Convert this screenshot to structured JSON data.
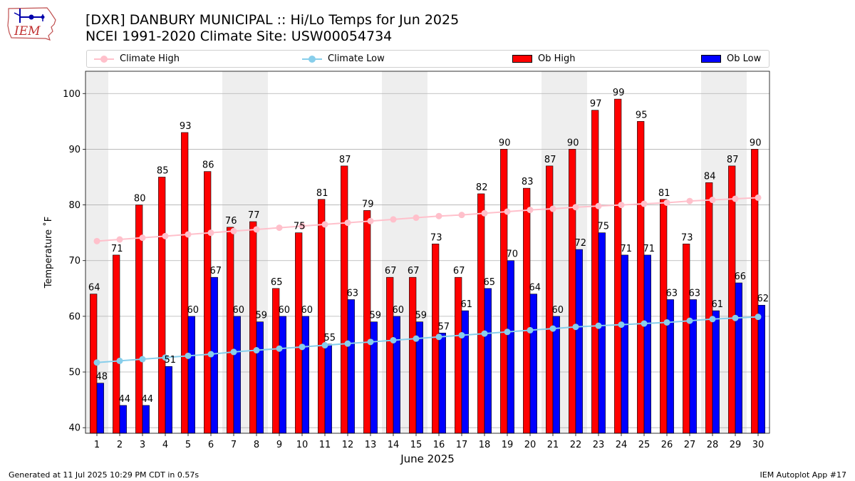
{
  "header": {
    "title_line1": "[DXR] DANBURY MUNICIPAL :: Hi/Lo Temps for Jun 2025",
    "title_line2": "NCEI 1991-2020 Climate Site: USW00054734",
    "logo_text": "IEM",
    "logo_icon": "iowa-map-weather-station-icon"
  },
  "legend": {
    "climate_high": "Climate High",
    "climate_low": "Climate Low",
    "ob_high": "Ob High",
    "ob_low": "Ob Low"
  },
  "footer": {
    "generated": "Generated at 11 Jul 2025 10:29 PM CDT in 0.57s",
    "app": "IEM Autoplot App #17"
  },
  "colors": {
    "ob_high": "#ff0000",
    "ob_low": "#0000ff",
    "climate_high": "#ffc0cb",
    "climate_low": "#87ceeb",
    "weekend_band": "#eeeeee",
    "grid": "#b0b0b0"
  },
  "chart_data": {
    "type": "bar",
    "xlabel": "June 2025",
    "ylabel": "Temperature ˚F",
    "ylim": [
      39,
      104
    ],
    "yticks": [
      40,
      50,
      60,
      70,
      80,
      90,
      100
    ],
    "grid": "horizontal",
    "legend_position": "top",
    "categories": [
      1,
      2,
      3,
      4,
      5,
      6,
      7,
      8,
      9,
      10,
      11,
      12,
      13,
      14,
      15,
      16,
      17,
      18,
      19,
      20,
      21,
      22,
      23,
      24,
      25,
      26,
      27,
      28,
      29,
      30
    ],
    "shaded_days": [
      1,
      7,
      8,
      14,
      15,
      21,
      22,
      28,
      29
    ],
    "series": [
      {
        "name": "Ob High",
        "type": "bar",
        "values": [
          64,
          71,
          80,
          85,
          93,
          86,
          76,
          77,
          65,
          75,
          81,
          87,
          79,
          67,
          67,
          73,
          67,
          82,
          90,
          83,
          87,
          90,
          97,
          99,
          95,
          81,
          73,
          84,
          87,
          90
        ]
      },
      {
        "name": "Ob Low",
        "type": "bar",
        "values": [
          48,
          44,
          44,
          51,
          60,
          67,
          60,
          59,
          60,
          60,
          55,
          63,
          59,
          60,
          59,
          57,
          61,
          65,
          70,
          64,
          60,
          72,
          75,
          71,
          71,
          63,
          63,
          61,
          66,
          62
        ]
      },
      {
        "name": "Climate High",
        "type": "line",
        "values": [
          73.5,
          73.8,
          74.1,
          74.4,
          74.7,
          75.0,
          75.3,
          75.6,
          75.9,
          76.2,
          76.5,
          76.8,
          77.1,
          77.4,
          77.7,
          78.0,
          78.2,
          78.5,
          78.8,
          79.1,
          79.3,
          79.6,
          79.8,
          80.0,
          80.2,
          80.4,
          80.7,
          80.9,
          81.1,
          81.3
        ]
      },
      {
        "name": "Climate Low",
        "type": "line",
        "values": [
          51.7,
          52.0,
          52.3,
          52.6,
          52.9,
          53.2,
          53.6,
          53.9,
          54.2,
          54.5,
          54.8,
          55.1,
          55.4,
          55.7,
          56.0,
          56.3,
          56.6,
          56.9,
          57.2,
          57.5,
          57.8,
          58.1,
          58.3,
          58.5,
          58.7,
          58.9,
          59.2,
          59.5,
          59.7,
          59.9
        ]
      }
    ]
  }
}
